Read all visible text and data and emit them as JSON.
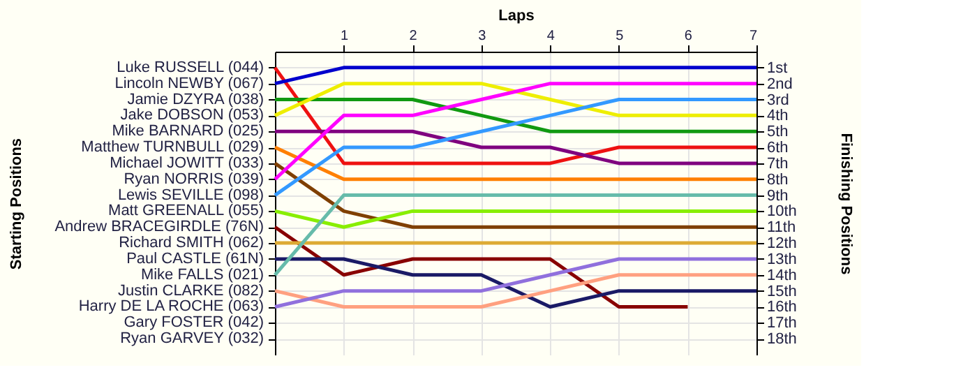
{
  "chart_data": {
    "type": "line",
    "xlabel": "Laps",
    "ylabel": "Finishing Positions",
    "x": [
      0,
      1,
      2,
      3,
      4,
      5,
      6,
      7
    ],
    "xlim": [
      0,
      7
    ],
    "xticks": [
      1,
      2,
      3,
      4,
      5,
      6,
      7
    ],
    "ylim": [
      19,
      0
    ],
    "yticks": [
      {
        "value": 1,
        "label": "1st"
      },
      {
        "value": 2,
        "label": "2nd"
      },
      {
        "value": 3,
        "label": "3rd"
      },
      {
        "value": 4,
        "label": "4th"
      },
      {
        "value": 5,
        "label": "5th"
      },
      {
        "value": 6,
        "label": "6th"
      },
      {
        "value": 7,
        "label": "7th"
      },
      {
        "value": 8,
        "label": "8th"
      },
      {
        "value": 9,
        "label": "9th"
      },
      {
        "value": 10,
        "label": "10th"
      },
      {
        "value": 11,
        "label": "11th"
      },
      {
        "value": 12,
        "label": "12th"
      },
      {
        "value": 13,
        "label": "13th"
      },
      {
        "value": 14,
        "label": "14th"
      },
      {
        "value": 15,
        "label": "15th"
      },
      {
        "value": 16,
        "label": "16th"
      },
      {
        "value": 17,
        "label": "17th"
      },
      {
        "value": 18,
        "label": "18th"
      }
    ],
    "grid": true,
    "legend": false,
    "marker": "none",
    "line_style": "solid",
    "annotations": [
      "Starting Positions",
      "Gary FOSTER (042)",
      "Ryan GARVEY (032)"
    ],
    "series": [
      {
        "name": "Luke RUSSELL (044)",
        "color": "#ee1111",
        "values": [
          1,
          7,
          7,
          7,
          7,
          6,
          6,
          6
        ]
      },
      {
        "name": "Lincoln NEWBY (067)",
        "color": "#0000cc",
        "values": [
          2,
          1,
          1,
          1,
          1,
          1,
          1,
          1
        ]
      },
      {
        "name": "Jamie DZYRA (038)",
        "color": "#119911",
        "values": [
          3,
          3,
          3,
          4,
          5,
          5,
          5,
          5
        ]
      },
      {
        "name": "Jake DOBSON (053)",
        "color": "#eeee00",
        "values": [
          4,
          2,
          2,
          2,
          3,
          4,
          4,
          4
        ]
      },
      {
        "name": "Mike BARNARD (025)",
        "color": "#7f007f",
        "values": [
          5,
          5,
          5,
          6,
          6,
          7,
          7,
          7
        ]
      },
      {
        "name": "Matthew TURNBULL (029)",
        "color": "#ff7f00",
        "values": [
          6,
          8,
          8,
          8,
          8,
          8,
          8,
          8
        ]
      },
      {
        "name": "Michael JOWITT (033)",
        "color": "#7f3f00",
        "values": [
          7,
          10,
          11,
          11,
          11,
          11,
          11,
          11
        ]
      },
      {
        "name": "Ryan NORRIS (039)",
        "color": "#ff00ff",
        "values": [
          8,
          4,
          4,
          3,
          2,
          2,
          2,
          2
        ]
      },
      {
        "name": "Lewis SEVILLE (098)",
        "color": "#3399ff",
        "values": [
          9,
          6,
          6,
          5,
          4,
          3,
          3,
          3
        ]
      },
      {
        "name": "Matt GREENALL (055)",
        "color": "#88ee00",
        "values": [
          10,
          11,
          10,
          10,
          10,
          10,
          10,
          10
        ]
      },
      {
        "name": "Andrew BRACEGIRDLE (76N)",
        "color": "#880000",
        "values": [
          11,
          14,
          13,
          13,
          13,
          16,
          16,
          null
        ]
      },
      {
        "name": "Richard SMITH (062)",
        "color": "#ddaa33",
        "values": [
          12,
          12,
          12,
          12,
          12,
          12,
          12,
          12
        ]
      },
      {
        "name": "Paul CASTLE (61N)",
        "color": "#1a1a66",
        "values": [
          13,
          13,
          14,
          14,
          16,
          15,
          15,
          15
        ]
      },
      {
        "name": "Mike FALLS (021)",
        "color": "#66bbaa",
        "values": [
          14,
          9,
          9,
          9,
          9,
          9,
          9,
          9
        ]
      },
      {
        "name": "Justin CLARKE (082)",
        "color": "#ffa080",
        "values": [
          15,
          16,
          16,
          16,
          15,
          14,
          14,
          14
        ]
      },
      {
        "name": "Harry DE LA ROCHE (063)",
        "color": "#9070dd",
        "values": [
          16,
          15,
          15,
          15,
          14,
          13,
          13,
          13
        ]
      }
    ]
  }
}
